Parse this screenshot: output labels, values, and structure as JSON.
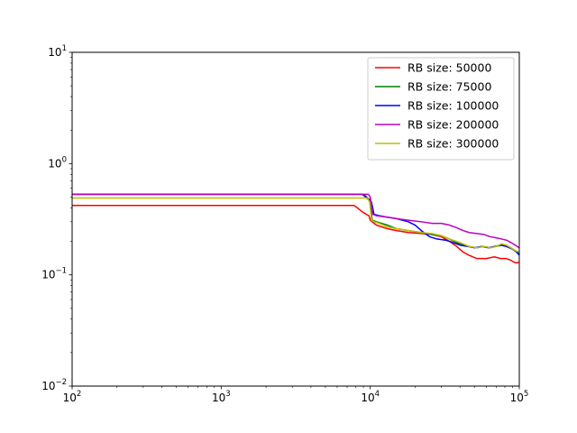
{
  "chart_data": {
    "type": "line",
    "title": "",
    "xlabel": "",
    "ylabel": "",
    "xscale": "log",
    "yscale": "log",
    "xlim": [
      100,
      100000
    ],
    "ylim": [
      0.01,
      10
    ],
    "grid": false,
    "legend_position": "top-right",
    "x_ticks": [
      {
        "base": "10",
        "exp": "2",
        "value": 100
      },
      {
        "base": "10",
        "exp": "3",
        "value": 1000
      },
      {
        "base": "10",
        "exp": "4",
        "value": 10000
      },
      {
        "base": "10",
        "exp": "5",
        "value": 100000
      }
    ],
    "y_ticks": [
      {
        "base": "10",
        "exp": "−2",
        "value": 0.01
      },
      {
        "base": "10",
        "exp": "−1",
        "value": 0.1
      },
      {
        "base": "10",
        "exp": "0",
        "value": 1
      },
      {
        "base": "10",
        "exp": "1",
        "value": 10
      }
    ],
    "series": [
      {
        "name": "RB size: 50000",
        "color": "#ff0000",
        "x": [
          100,
          7800,
          8200,
          8800,
          9400,
          9800,
          10000,
          10300,
          11000,
          13000,
          15000,
          18000,
          22000,
          26000,
          30000,
          34000,
          38000,
          42000,
          46000,
          52000,
          60000,
          68000,
          75000,
          82000,
          88000,
          92000,
          96000,
          100000
        ],
        "y": [
          0.42,
          0.42,
          0.4,
          0.37,
          0.35,
          0.34,
          0.31,
          0.3,
          0.28,
          0.26,
          0.25,
          0.24,
          0.235,
          0.23,
          0.22,
          0.2,
          0.18,
          0.16,
          0.15,
          0.14,
          0.14,
          0.145,
          0.14,
          0.14,
          0.135,
          0.13,
          0.128,
          0.13
        ]
      },
      {
        "name": "RB size: 75000",
        "color": "#008000",
        "x": [
          100,
          8800,
          9300,
          9800,
          10000,
          10300,
          11000,
          13000,
          15000,
          18000,
          22000,
          26000,
          30000,
          34000,
          38000,
          42000,
          46000,
          52000,
          58000,
          64000,
          70000,
          76000,
          82000,
          88000,
          94000,
          100000
        ],
        "y": [
          0.53,
          0.53,
          0.5,
          0.47,
          0.45,
          0.31,
          0.3,
          0.28,
          0.26,
          0.25,
          0.24,
          0.23,
          0.225,
          0.21,
          0.195,
          0.185,
          0.18,
          0.175,
          0.18,
          0.175,
          0.18,
          0.185,
          0.18,
          0.175,
          0.165,
          0.155
        ]
      },
      {
        "name": "RB size: 100000",
        "color": "#0000ff",
        "x": [
          100,
          8900,
          9300,
          9800,
          10200,
          10600,
          11500,
          13000,
          15000,
          18000,
          20000,
          22000,
          25000,
          28000,
          32000,
          36000,
          40000,
          45000,
          50000,
          56000,
          62000,
          68000,
          75000,
          82000,
          90000,
          96000,
          100000
        ],
        "y": [
          0.53,
          0.53,
          0.51,
          0.48,
          0.45,
          0.35,
          0.34,
          0.33,
          0.32,
          0.3,
          0.28,
          0.25,
          0.22,
          0.21,
          0.205,
          0.195,
          0.185,
          0.18,
          0.175,
          0.18,
          0.175,
          0.18,
          0.185,
          0.18,
          0.17,
          0.16,
          0.15
        ]
      },
      {
        "name": "RB size: 200000",
        "color": "#c000c0",
        "x": [
          100,
          9700,
          10000,
          10400,
          11000,
          13000,
          15000,
          18000,
          22000,
          26000,
          30000,
          34000,
          38000,
          42000,
          46000,
          52000,
          58000,
          64000,
          70000,
          76000,
          82000,
          88000,
          94000,
          100000
        ],
        "y": [
          0.53,
          0.53,
          0.5,
          0.35,
          0.34,
          0.33,
          0.32,
          0.31,
          0.3,
          0.29,
          0.29,
          0.28,
          0.265,
          0.25,
          0.24,
          0.235,
          0.23,
          0.22,
          0.215,
          0.21,
          0.205,
          0.195,
          0.185,
          0.175
        ]
      },
      {
        "name": "RB size: 300000",
        "color": "#bfbf00",
        "x": [
          100,
          9600,
          9900,
          10200,
          10600,
          11500,
          13000,
          15000,
          18000,
          22000,
          26000,
          30000,
          34000,
          38000,
          42000,
          46000,
          52000,
          58000,
          64000,
          70000,
          76000,
          82000,
          88000,
          94000,
          100000
        ],
        "y": [
          0.49,
          0.49,
          0.45,
          0.31,
          0.3,
          0.29,
          0.27,
          0.26,
          0.25,
          0.24,
          0.235,
          0.225,
          0.21,
          0.2,
          0.19,
          0.18,
          0.175,
          0.18,
          0.175,
          0.18,
          0.19,
          0.185,
          0.175,
          0.165,
          0.16
        ]
      }
    ]
  }
}
